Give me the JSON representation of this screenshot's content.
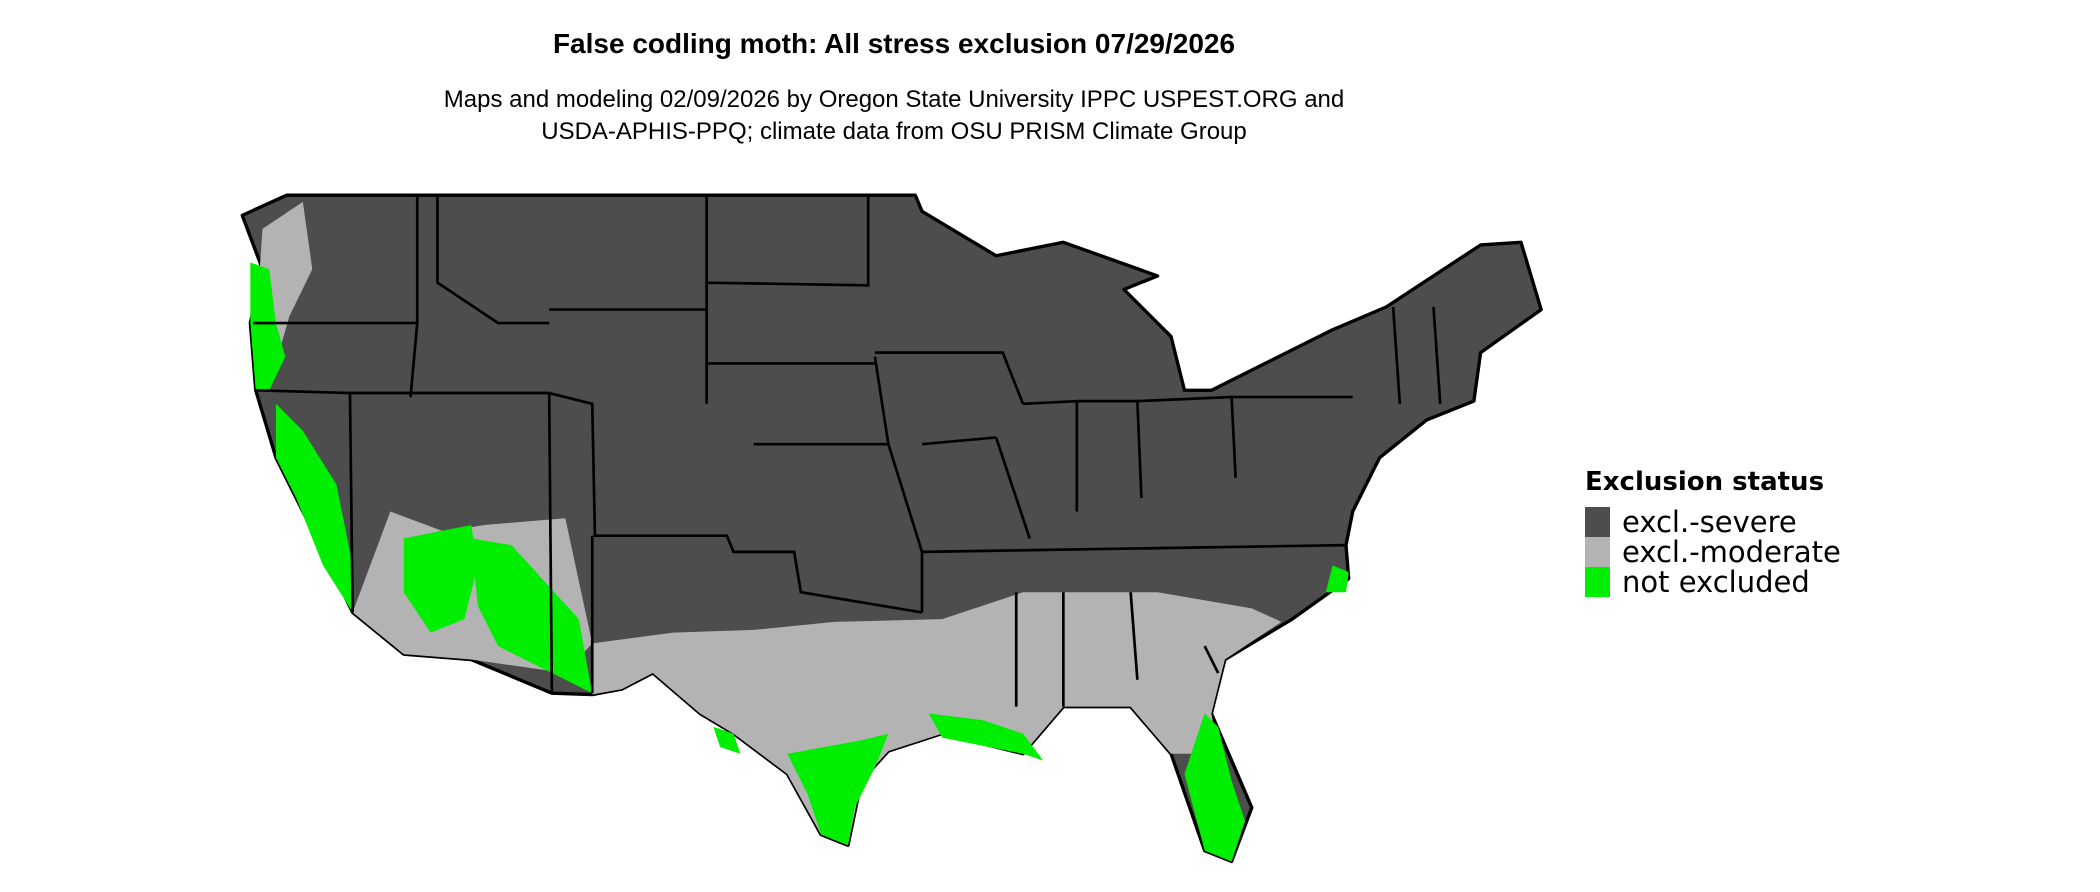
{
  "title": "False codling moth: All stress exclusion 07/29/2026",
  "subtitle_line1": "Maps and modeling 02/09/2026 by Oregon State University IPPC USPEST.ORG and",
  "subtitle_line2": "USDA-APHIS-PPQ; climate data from OSU PRISM Climate Group",
  "legend": {
    "title": "Exclusion status",
    "items": [
      {
        "label": "excl.-severe",
        "color": "#4d4d4d"
      },
      {
        "label": "excl.-moderate",
        "color": "#b3b3b3"
      },
      {
        "label": "not excluded",
        "color": "#00ee00"
      }
    ]
  }
}
